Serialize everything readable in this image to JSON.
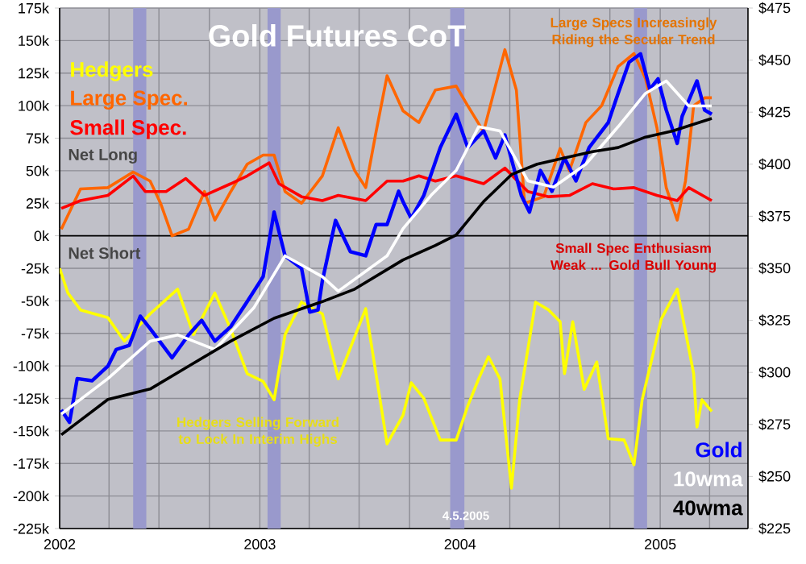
{
  "chart_data": {
    "type": "line",
    "title": "Gold Futures CoT",
    "annotations": [
      "Net Long",
      "Net Short",
      "Large Specs Increasingly Riding the Secular Trend",
      "Small Spec Enthusiasm Weak ... Gold Bull Young",
      "Hedgers Selling Forward to Lock In Interim Highs",
      "4.5.2005"
    ],
    "xlim": [
      "2002-01-01",
      "2005-06-10"
    ],
    "xticks": [
      {
        "value": "2002",
        "label": "2002"
      },
      {
        "value": "2002-04",
        "label": null
      },
      {
        "value": "2002-07",
        "label": null
      },
      {
        "value": "2002-10",
        "label": null
      },
      {
        "value": "2003",
        "label": "2003"
      },
      {
        "value": "2003-04",
        "label": null
      },
      {
        "value": "2003-07",
        "label": null
      },
      {
        "value": "2003-10",
        "label": null
      },
      {
        "value": "2004",
        "label": "2004"
      },
      {
        "value": "2004-04",
        "label": null
      },
      {
        "value": "2004-07",
        "label": null
      },
      {
        "value": "2004-10",
        "label": null
      },
      {
        "value": "2005",
        "label": "2005"
      },
      {
        "value": "2005-04",
        "label": null
      }
    ],
    "ylim": [
      -225,
      175
    ],
    "yticks": [
      {
        "value": -225,
        "label": "-225k"
      },
      {
        "value": -200,
        "label": "-200k"
      },
      {
        "value": -175,
        "label": "-175k"
      },
      {
        "value": -150,
        "label": "-150k"
      },
      {
        "value": -125,
        "label": "-125k"
      },
      {
        "value": -100,
        "label": "-100k"
      },
      {
        "value": -75,
        "label": "-75k"
      },
      {
        "value": -50,
        "label": "-50k"
      },
      {
        "value": -25,
        "label": "-25k"
      },
      {
        "value": 0,
        "label": "0k"
      },
      {
        "value": 25,
        "label": "25k"
      },
      {
        "value": 50,
        "label": "50k"
      },
      {
        "value": 75,
        "label": "75k"
      },
      {
        "value": 100,
        "label": "100k"
      },
      {
        "value": 125,
        "label": "125k"
      },
      {
        "value": 150,
        "label": "150k"
      },
      {
        "value": 175,
        "label": "175k"
      }
    ],
    "y2lim": [
      225,
      475
    ],
    "y2ticks": [
      {
        "value": 225,
        "label": "$225"
      },
      {
        "value": 250,
        "label": "$250"
      },
      {
        "value": 275,
        "label": "$275"
      },
      {
        "value": 300,
        "label": "$300"
      },
      {
        "value": 325,
        "label": "$325"
      },
      {
        "value": 350,
        "label": "$350"
      },
      {
        "value": 375,
        "label": "$375"
      },
      {
        "value": 400,
        "label": "$400"
      },
      {
        "value": 425,
        "label": "$425"
      },
      {
        "value": 450,
        "label": "$450"
      },
      {
        "value": 475,
        "label": "$475"
      }
    ],
    "grid": true,
    "ref_lines": [
      {
        "axis": "y",
        "value": 0,
        "color": "#000000"
      }
    ],
    "bands": [
      {
        "axis": "x",
        "from": "2002-05-15",
        "to": "2002-06-08",
        "color": "#9999cc"
      },
      {
        "axis": "x",
        "from": "2003-01-15",
        "to": "2003-02-08",
        "color": "#9999cc"
      },
      {
        "axis": "x",
        "from": "2003-12-14",
        "to": "2004-01-09",
        "color": "#9999cc"
      },
      {
        "axis": "x",
        "from": "2004-11-14",
        "to": "2004-12-08",
        "color": "#9999cc"
      }
    ],
    "series": [
      {
        "name": "Hedgers",
        "color": "#ffff00",
        "x": [
          "2002-01-01",
          "2002-01-16",
          "2002-02-08",
          "2002-03-30",
          "2002-04-29",
          "2002-06-15",
          "2002-08-04",
          "2002-09-02",
          "2002-10-11",
          "2002-11-09",
          "2002-12-09",
          "2003-01-07",
          "2003-01-27",
          "2003-02-16",
          "2003-03-18",
          "2003-04-25",
          "2003-05-24",
          "2003-07-13",
          "2003-08-21",
          "2003-09-19",
          "2003-10-04",
          "2003-10-27",
          "2003-11-26",
          "2003-12-25",
          "2004-01-15",
          "2004-02-04",
          "2004-02-22",
          "2004-03-14",
          "2004-04-04",
          "2004-04-19",
          "2004-05-18",
          "2004-06-11",
          "2004-07-02",
          "2004-07-10",
          "2004-07-25",
          "2004-08-15",
          "2004-09-07",
          "2004-09-28",
          "2004-10-27",
          "2004-11-14",
          "2004-11-29",
          "2005-01-03",
          "2005-02-01",
          "2005-03-03",
          "2005-03-09",
          "2005-03-18",
          "2005-04-05"
        ],
        "values": [
          -25,
          -44,
          -57,
          -63,
          -81,
          -60,
          -41,
          -76,
          -44,
          -72,
          -106,
          -112,
          -126,
          -76,
          -51,
          -60,
          -110,
          -56,
          -160,
          -138,
          -113,
          -125,
          -157,
          -157,
          -131,
          -110,
          -93,
          -110,
          -194,
          -126,
          -51,
          -57,
          -66,
          -106,
          -66,
          -118,
          -97,
          -156,
          -157,
          -176,
          -126,
          -64,
          -41,
          -106,
          -147,
          -126,
          -135
        ]
      },
      {
        "name": "Large Spec.",
        "color": "#ff6600",
        "x": [
          "2002-01-04",
          "2002-02-08",
          "2002-03-30",
          "2002-05-15",
          "2002-06-15",
          "2002-07-04",
          "2002-07-25",
          "2002-08-24",
          "2002-09-22",
          "2002-10-11",
          "2002-11-09",
          "2002-12-09",
          "2003-01-07",
          "2003-01-27",
          "2003-02-16",
          "2003-03-18",
          "2003-04-25",
          "2003-05-24",
          "2003-06-23",
          "2003-07-13",
          "2003-08-01",
          "2003-08-21",
          "2003-09-19",
          "2003-10-18",
          "2003-11-17",
          "2003-12-25",
          "2004-01-15",
          "2004-02-13",
          "2004-03-23",
          "2004-04-13",
          "2004-04-28",
          "2004-06-02",
          "2004-07-02",
          "2004-07-19",
          "2004-08-18",
          "2004-09-16",
          "2004-10-16",
          "2004-11-14",
          "2004-12-05",
          "2004-12-26",
          "2005-01-12",
          "2005-02-01",
          "2005-02-16",
          "2005-03-03",
          "2005-03-23",
          "2005-04-05"
        ],
        "values": [
          5,
          36,
          37,
          49,
          42,
          25,
          0,
          5,
          34,
          12,
          34,
          55,
          62,
          62,
          34,
          25,
          46,
          83,
          50,
          37,
          80,
          123,
          96,
          87,
          112,
          115,
          100,
          80,
          143,
          112,
          25,
          30,
          67,
          50,
          87,
          100,
          130,
          140,
          121,
          83,
          37,
          12,
          42,
          100,
          106,
          106
        ]
      },
      {
        "name": "Small Spec.",
        "color": "#ff0000",
        "x": [
          "2002-01-04",
          "2002-02-08",
          "2002-03-30",
          "2002-05-15",
          "2002-06-06",
          "2002-07-14",
          "2002-08-19",
          "2002-09-22",
          "2002-11-09",
          "2002-12-09",
          "2003-01-18",
          "2003-02-05",
          "2003-03-18",
          "2003-04-25",
          "2003-05-24",
          "2003-07-13",
          "2003-08-21",
          "2003-09-19",
          "2003-10-18",
          "2003-11-17",
          "2003-12-25",
          "2004-02-13",
          "2004-03-23",
          "2004-05-04",
          "2004-06-11",
          "2004-07-19",
          "2004-08-30",
          "2004-10-08",
          "2004-11-14",
          "2004-12-26",
          "2005-02-01",
          "2005-02-22",
          "2005-04-05"
        ],
        "values": [
          21,
          27,
          31,
          46,
          34,
          34,
          44,
          31,
          40,
          46,
          56,
          40,
          30,
          27,
          31,
          27,
          42,
          42,
          46,
          42,
          46,
          40,
          52,
          34,
          30,
          31,
          40,
          36,
          37,
          31,
          27,
          37,
          27
        ]
      },
      {
        "name": "Gold",
        "color": "#0000ff",
        "axis": "y2",
        "x": [
          "2002-01-04",
          "2002-01-19",
          "2002-02-02",
          "2002-03-01",
          "2002-03-30",
          "2002-04-14",
          "2002-05-08",
          "2002-05-28",
          "2002-06-15",
          "2002-07-25",
          "2002-08-24",
          "2002-09-17",
          "2002-10-11",
          "2002-11-09",
          "2002-12-09",
          "2003-01-07",
          "2003-01-27",
          "2003-02-16",
          "2003-03-18",
          "2003-04-02",
          "2003-04-17",
          "2003-04-25",
          "2003-05-19",
          "2003-06-15",
          "2003-07-13",
          "2003-08-01",
          "2003-08-21",
          "2003-09-11",
          "2003-09-19",
          "2003-10-04",
          "2003-10-27",
          "2003-11-26",
          "2003-12-25",
          "2004-01-15",
          "2004-02-13",
          "2004-03-06",
          "2004-03-23",
          "2004-04-22",
          "2004-05-07",
          "2004-05-27",
          "2004-06-17",
          "2004-07-10",
          "2004-07-31",
          "2004-08-24",
          "2004-09-28",
          "2004-10-16",
          "2004-11-05",
          "2004-11-26",
          "2004-12-13",
          "2004-12-28",
          "2005-01-12",
          "2005-02-01",
          "2005-02-10",
          "2005-03-09",
          "2005-03-23",
          "2005-04-05"
        ],
        "values": [
          282,
          276,
          297,
          296,
          303,
          311,
          313,
          327,
          321,
          307,
          318,
          325,
          315,
          322,
          334,
          346,
          377,
          356,
          350,
          329,
          330,
          344,
          373,
          358,
          356,
          371,
          371,
          387,
          382,
          374,
          385,
          408,
          424,
          408,
          416,
          403,
          414,
          385,
          377,
          397,
          387,
          403,
          392,
          408,
          420,
          434,
          449,
          453,
          436,
          441,
          426,
          410,
          423,
          440,
          426,
          424
        ]
      },
      {
        "name": "10wma",
        "color": "#ffffff",
        "axis": "y2",
        "x": [
          "2002-01-04",
          "2002-03-30",
          "2002-06-15",
          "2002-08-04",
          "2002-10-11",
          "2002-12-21",
          "2003-02-16",
          "2003-04-25",
          "2003-05-24",
          "2003-08-21",
          "2003-09-19",
          "2003-11-09",
          "2003-12-25",
          "2004-02-04",
          "2004-03-14",
          "2004-05-04",
          "2004-06-20",
          "2004-08-18",
          "2004-10-16",
          "2004-12-05",
          "2005-01-12",
          "2005-02-22",
          "2005-04-05"
        ],
        "values": [
          280,
          297,
          315,
          318,
          311,
          331,
          356,
          346,
          339,
          356,
          369,
          385,
          397,
          418,
          416,
          392,
          389,
          400,
          418,
          434,
          440,
          428,
          428
        ]
      },
      {
        "name": "40wma",
        "color": "#000000",
        "axis": "y2",
        "x": [
          "2002-01-04",
          "2002-03-30",
          "2002-06-15",
          "2002-08-24",
          "2002-11-09",
          "2003-01-27",
          "2003-04-25",
          "2003-06-23",
          "2003-09-19",
          "2003-11-17",
          "2003-12-25",
          "2004-02-13",
          "2004-04-04",
          "2004-05-21",
          "2004-07-10",
          "2004-08-30",
          "2004-10-16",
          "2004-12-05",
          "2005-01-24",
          "2005-04-05"
        ],
        "values": [
          270,
          287,
          292,
          303,
          315,
          326,
          334,
          340,
          354,
          361,
          366,
          382,
          395,
          400,
          403,
          406,
          408,
          413,
          416,
          422
        ]
      }
    ]
  }
}
